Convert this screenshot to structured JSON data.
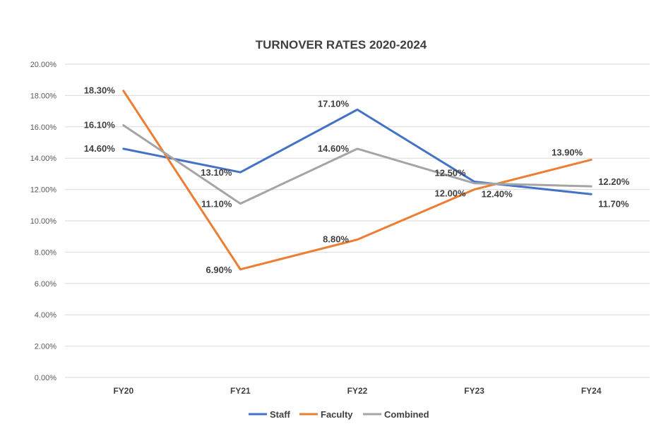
{
  "chart_data": {
    "type": "line",
    "title": "TURNOVER RATES 2020-2024",
    "xlabel": "",
    "ylabel": "",
    "categories": [
      "FY20",
      "FY21",
      "FY22",
      "FY23",
      "FY24"
    ],
    "ylim": [
      0,
      20
    ],
    "yticks": [
      "0.00%",
      "2.00%",
      "4.00%",
      "6.00%",
      "8.00%",
      "10.00%",
      "12.00%",
      "14.00%",
      "16.00%",
      "18.00%",
      "20.00%"
    ],
    "grid": true,
    "legend_position": "bottom",
    "series": [
      {
        "name": "Staff",
        "color": "#4472c4",
        "values": [
          14.6,
          13.1,
          17.1,
          12.5,
          11.7
        ],
        "labels": [
          "14.60%",
          "13.10%",
          "17.10%",
          "12.50%",
          "11.70%"
        ]
      },
      {
        "name": "Faculty",
        "color": "#ed7d31",
        "values": [
          18.3,
          6.9,
          8.8,
          12.0,
          13.9
        ],
        "labels": [
          "18.30%",
          "6.90%",
          "8.80%",
          "12.00%",
          "13.90%"
        ]
      },
      {
        "name": "Combined",
        "color": "#a5a5a5",
        "values": [
          16.1,
          11.1,
          14.6,
          12.4,
          12.2
        ],
        "labels": [
          "16.10%",
          "11.10%",
          "14.60%",
          "12.40%",
          "12.20%"
        ]
      }
    ]
  }
}
